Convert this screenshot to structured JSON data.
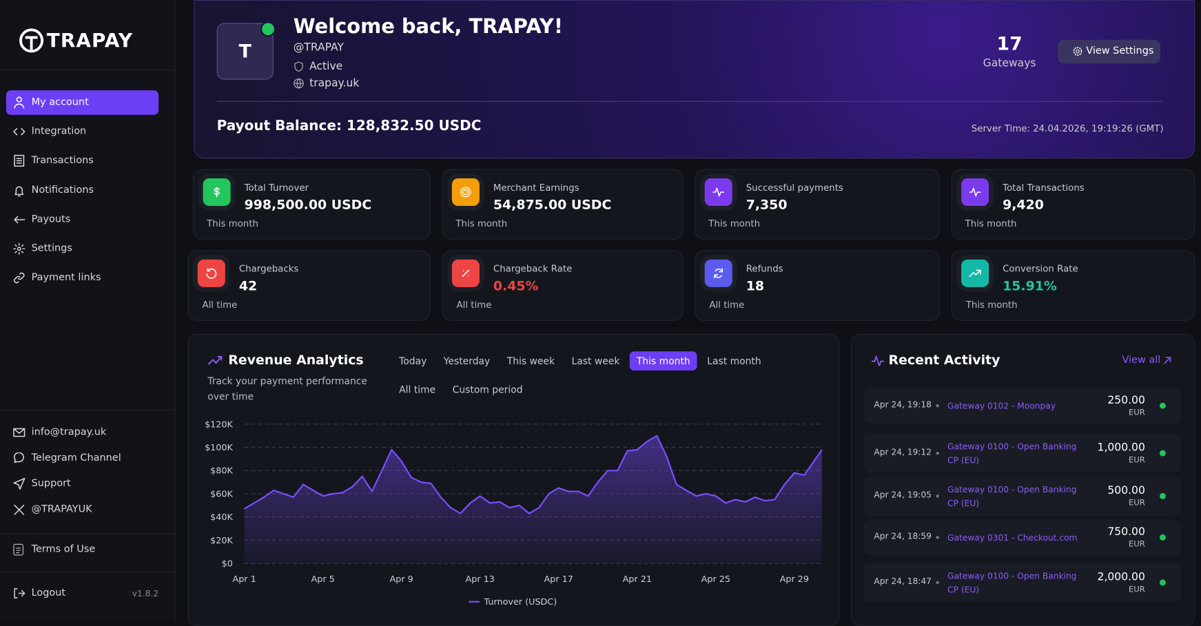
{
  "brand": "TRAPAY",
  "nav": [
    "My account",
    "Integration",
    "Transactions",
    "Notifications",
    "Payouts",
    "Settings",
    "Payment links"
  ],
  "contacts": [
    "info@trapay.uk",
    "Telegram Channel",
    "Support",
    "@TRAPAYUK"
  ],
  "terms": "Terms of Use",
  "logout": "Logout",
  "version": "v1.8.2",
  "header": {
    "avatar": "T",
    "title": "Welcome back, TRAPAY!",
    "handle": "@TRAPAY",
    "status": "Active",
    "site": "trapay.uk",
    "gateways_count": "17",
    "gateways_label": "Gateways",
    "settings_button": "View Settings",
    "balance": "Payout Balance: 128,832.50 USDC",
    "server_time": "Server Time: 24.04.2026, 19:19:26 (GMT)"
  },
  "stats": [
    {
      "label": "Total Turnover",
      "value": "998,500.00 USDC",
      "period": "This month"
    },
    {
      "label": "Merchant Earnings",
      "value": "54,875.00 USDC",
      "period": "This month"
    },
    {
      "label": "Successful payments",
      "value": "7,350",
      "period": "This month"
    },
    {
      "label": "Total Transactions",
      "value": "9,420",
      "period": "This month"
    },
    {
      "label": "Chargebacks",
      "value": "42",
      "period": "All time"
    },
    {
      "label": "Chargeback Rate",
      "value": "0.45%",
      "period": "All time"
    },
    {
      "label": "Refunds",
      "value": "18",
      "period": "All time"
    },
    {
      "label": "Conversion Rate",
      "value": "15.91%",
      "period": "This month"
    }
  ],
  "revenue": {
    "title": "Revenue Analytics",
    "subtitle": "Track your payment performance over time",
    "periods": [
      "Today",
      "Yesterday",
      "This week",
      "Last week",
      "This month",
      "Last month",
      "All time",
      "Custom period"
    ],
    "chart_data": {
      "type": "line",
      "x": [
        1,
        1.5,
        2,
        2.5,
        3,
        3.5,
        4,
        4.5,
        5,
        5.5,
        6,
        6.5,
        7,
        7.5,
        8,
        8.5,
        9,
        9.5,
        10,
        10.5,
        11,
        11.5,
        12,
        12.5,
        13,
        13.5,
        14,
        14.5,
        15,
        15.5,
        16,
        16.5,
        17,
        17.5,
        18,
        18.5,
        19,
        19.5,
        20,
        20.5,
        21,
        21.5,
        22,
        22.5,
        23,
        23.5,
        24,
        24.5,
        25,
        25.5,
        26,
        26.5,
        27,
        27.5,
        28,
        28.5,
        29,
        29.5,
        30,
        30.4
      ],
      "series": [
        {
          "name": "Turnover (USDC)",
          "color": "#7c4dff",
          "values": [
            47000,
            52000,
            57000,
            63000,
            60000,
            57000,
            68000,
            63000,
            58000,
            60000,
            61000,
            66000,
            75000,
            62000,
            80000,
            98000,
            88000,
            74000,
            70000,
            69000,
            57000,
            48000,
            43000,
            52000,
            58000,
            52000,
            53000,
            48000,
            50000,
            43000,
            48000,
            60000,
            65000,
            62000,
            62000,
            58000,
            70000,
            80000,
            80000,
            97000,
            98000,
            105000,
            110000,
            92000,
            68000,
            63000,
            58000,
            60000,
            58000,
            52000,
            55000,
            53000,
            57000,
            54000,
            55000,
            68000,
            78000,
            76000,
            88000,
            98000
          ]
        }
      ],
      "xlim": [
        1,
        30.4
      ],
      "ylim": [
        0,
        120000
      ],
      "xticks": [
        {
          "value": 1,
          "label": "Apr 1"
        },
        {
          "value": 5,
          "label": "Apr 5"
        },
        {
          "value": 9,
          "label": "Apr 9"
        },
        {
          "value": 13,
          "label": "Apr 13"
        },
        {
          "value": 17,
          "label": "Apr 17"
        },
        {
          "value": 21,
          "label": "Apr 21"
        },
        {
          "value": 25,
          "label": "Apr 25"
        },
        {
          "value": 29,
          "label": "Apr 29"
        }
      ],
      "yticks": [
        {
          "value": 0,
          "label": "$0"
        },
        {
          "value": 20000,
          "label": "$20K"
        },
        {
          "value": 40000,
          "label": "$40K"
        },
        {
          "value": 60000,
          "label": "$60K"
        },
        {
          "value": 80000,
          "label": "$80K"
        },
        {
          "value": 100000,
          "label": "$100K"
        },
        {
          "value": 120000,
          "label": "$120K"
        }
      ],
      "grid": true
    }
  },
  "activity": {
    "title": "Recent Activity",
    "view_all": "View all",
    "items": [
      {
        "time": "Apr 24, 19:18",
        "gateway": "Gateway 0102 - Moonpay",
        "amount": "250.00",
        "currency": "EUR"
      },
      {
        "time": "Apr 24, 19:12",
        "gateway": "Gateway 0100 - Open Banking CP (EU)",
        "amount": "1,000.00",
        "currency": "EUR"
      },
      {
        "time": "Apr 24, 19:05",
        "gateway": "Gateway 0100 - Open Banking CP (EU)",
        "amount": "500.00",
        "currency": "EUR"
      },
      {
        "time": "Apr 24, 18:59",
        "gateway": "Gateway 0301 - Checkout.com",
        "amount": "750.00",
        "currency": "EUR"
      },
      {
        "time": "Apr 24, 18:47",
        "gateway": "Gateway 0100 - Open Banking CP (EU)",
        "amount": "2,000.00",
        "currency": "EUR"
      }
    ]
  }
}
